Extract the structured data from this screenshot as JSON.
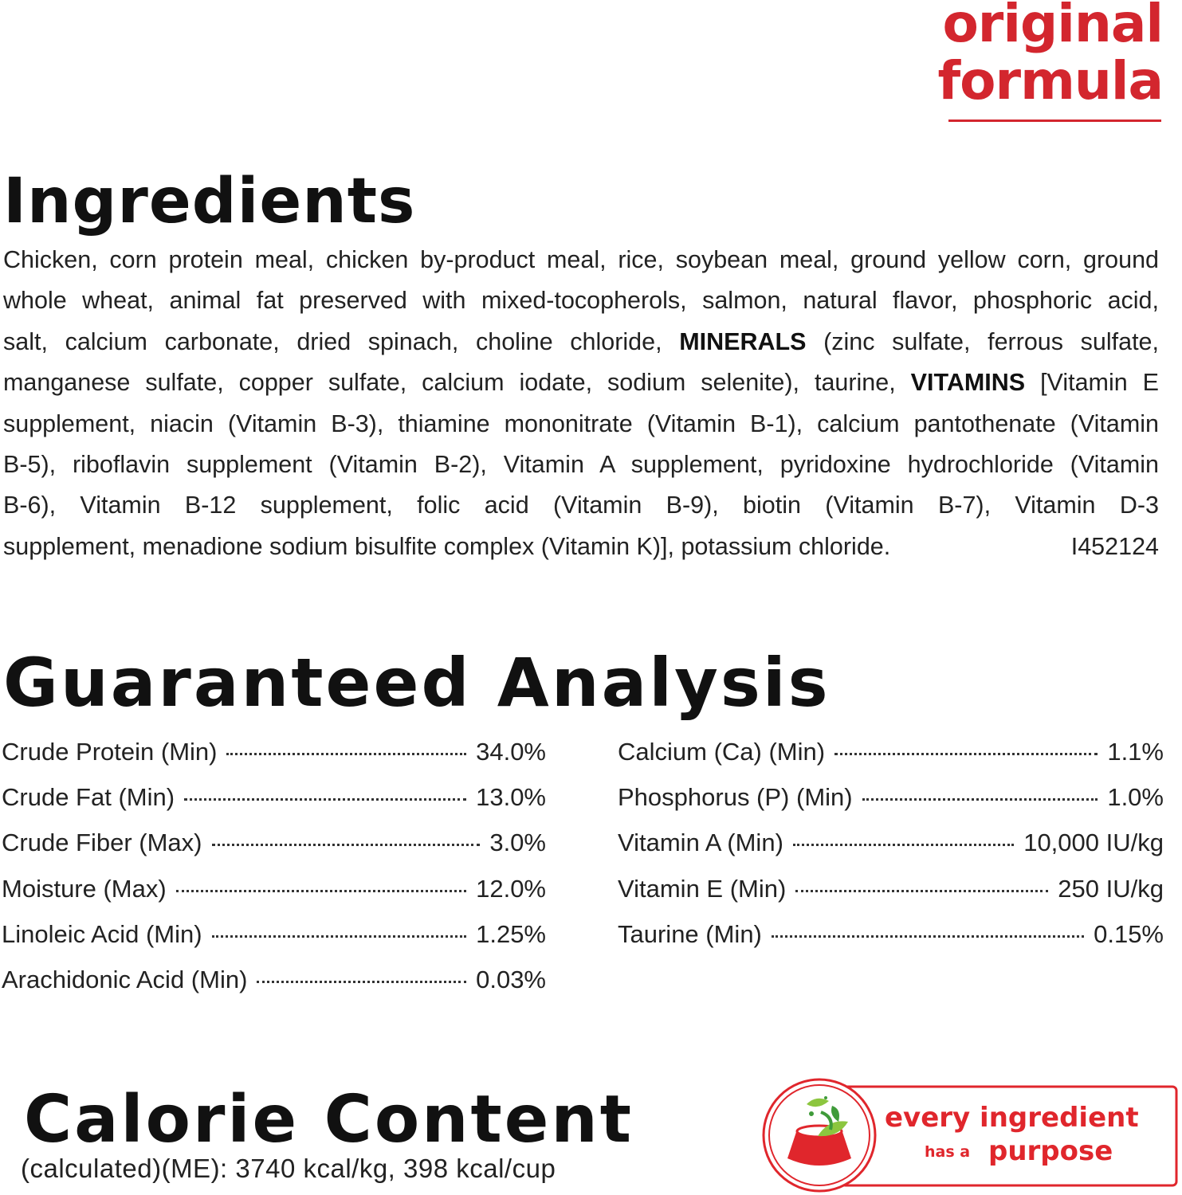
{
  "logo": {
    "line1": "original",
    "line2": "formula",
    "color": "#d3262e"
  },
  "ingredients": {
    "title": "Ingredients",
    "lines": [
      [
        {
          "t": "Chicken, corn protein meal, chicken by-product meal, rice, soybean meal, ground yellow corn, ground"
        }
      ],
      [
        {
          "t": "whole wheat, animal fat preserved with mixed-tocopherols, salmon, natural flavor, phosphoric acid,"
        }
      ],
      [
        {
          "t": "salt, calcium carbonate, dried spinach, choline chloride, "
        },
        {
          "t": "MINERALS",
          "b": true
        },
        {
          "t": " (zinc sulfate, ferrous sulfate,"
        }
      ],
      [
        {
          "t": "manganese sulfate, copper sulfate, calcium iodate, sodium selenite), taurine, "
        },
        {
          "t": "VITAMINS",
          "b": true
        },
        {
          "t": " [Vitamin E"
        }
      ],
      [
        {
          "t": "supplement, niacin (Vitamin B-3), thiamine mononitrate (Vitamin B-1), calcium pantothenate (Vitamin"
        }
      ],
      [
        {
          "t": "B-5), riboflavin supplement (Vitamin B-2), Vitamin A supplement, pyridoxine hydrochloride (Vitamin"
        }
      ],
      [
        {
          "t": "B-6), Vitamin B-12 supplement, folic acid (Vitamin B-9), biotin (Vitamin B-7), Vitamin D-3"
        }
      ]
    ],
    "last_line": "supplement, menadione sodium bisulfite complex (Vitamin K)], potassium chloride.",
    "code": "I452124"
  },
  "analysis": {
    "title": "Guaranteed Analysis",
    "left": [
      {
        "label": "Crude Protein (Min)",
        "value": "34.0%"
      },
      {
        "label": "Crude Fat (Min)",
        "value": "13.0%"
      },
      {
        "label": "Crude Fiber (Max)",
        "value": "3.0%"
      },
      {
        "label": "Moisture (Max)",
        "value": "12.0%"
      },
      {
        "label": "Linoleic Acid (Min)",
        "value": "1.25%"
      },
      {
        "label": "Arachidonic Acid (Min)",
        "value": "0.03%"
      }
    ],
    "right": [
      {
        "label": "Calcium (Ca) (Min)",
        "value": "1.1%"
      },
      {
        "label": "Phosphorus (P) (Min)",
        "value": "1.0%"
      },
      {
        "label": "Vitamin A (Min)",
        "value": "10,000 IU/kg"
      },
      {
        "label": "Vitamin E (Min)",
        "value": "250 IU/kg"
      },
      {
        "label": "Taurine (Min)",
        "value": "0.15%"
      }
    ]
  },
  "calorie": {
    "title": "Calorie Content",
    "text": "(calculated)(ME): 3740 kcal/kg, 398 kcal/cup"
  },
  "badge": {
    "line1": "every ingredient",
    "small": "has a",
    "line2": "purpose",
    "icon": "food-bowl-with-leaves-icon",
    "color": "#e0262c",
    "leaf_color": "#7dbb3a"
  }
}
